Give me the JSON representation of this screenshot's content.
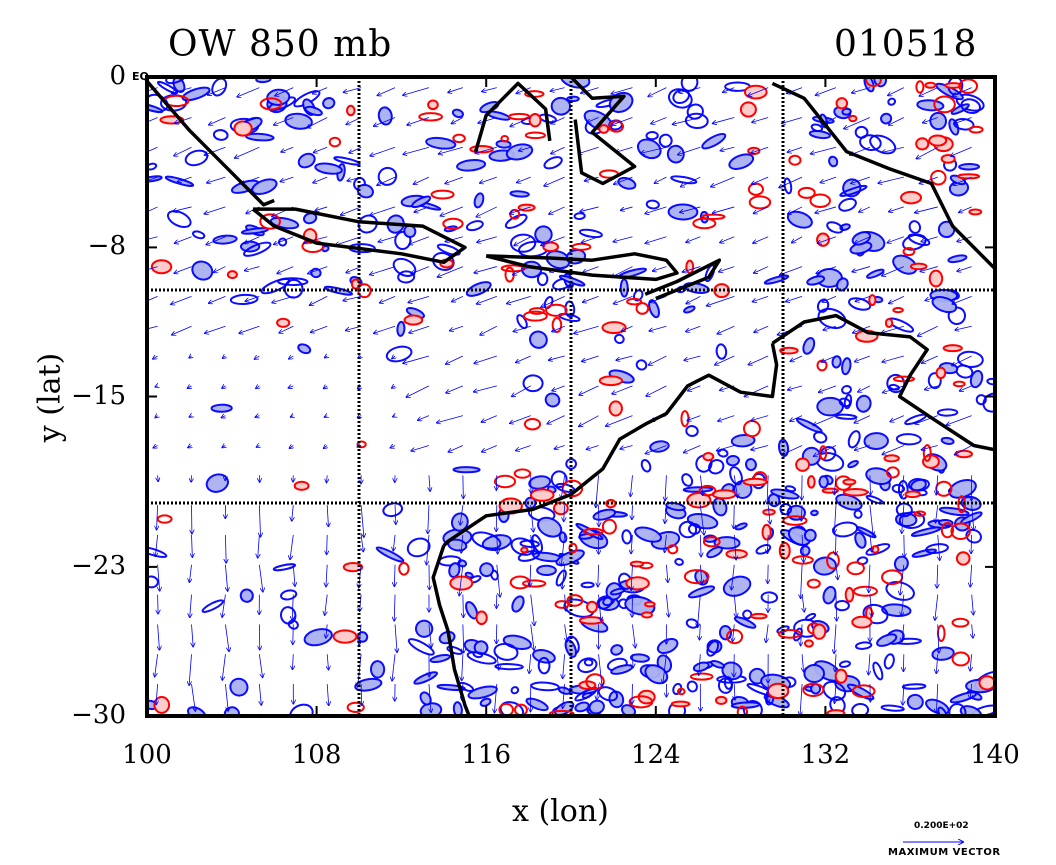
{
  "chart_data": {
    "type": "map",
    "title_left": "OW 850 mb",
    "title_right": "010518",
    "xlabel": "x (lon)",
    "ylabel": "y (lat)",
    "xlim": [
      100,
      140
    ],
    "ylim": [
      -30,
      0
    ],
    "x_ticks": [
      "100",
      "108",
      "116",
      "124",
      "132",
      "140"
    ],
    "y_ticks": [
      "0",
      "−8",
      "−15",
      "−23",
      "−30"
    ],
    "y_tick_values": [
      0,
      -8,
      -15,
      -23,
      -30
    ],
    "x_tick_values": [
      100,
      108,
      116,
      124,
      132,
      140
    ],
    "grid_lon": [
      110,
      120,
      130
    ],
    "grid_lat": [
      -10,
      -20
    ],
    "eq_label": "EQ",
    "max_vector_value": "0.200E+02",
    "max_vector_label": "MAXIMUM VECTOR",
    "colors": {
      "positive_contour": "#ff0000",
      "positive_fill": "#ffcccc",
      "negative_contour": "#0000ff",
      "negative_fill": "#aab0f0",
      "coastline": "#000000",
      "vectors": "#0000ff"
    }
  }
}
